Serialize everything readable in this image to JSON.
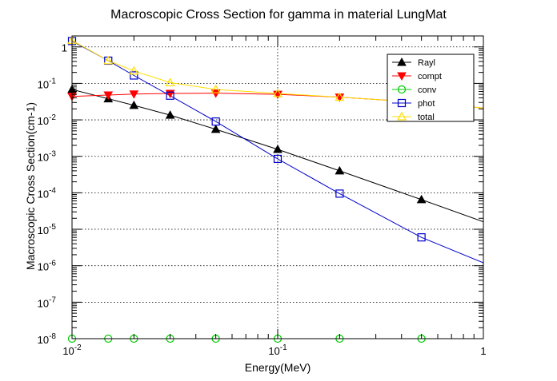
{
  "chart_data": {
    "type": "line",
    "title": "Macroscopic Cross Section for gamma in material LungMat",
    "xlabel": "Energy(MeV)",
    "ylabel": "Macroscopic Cross Section(cm-1)",
    "xscale": "log",
    "yscale": "log",
    "xlim": [
      0.01,
      1
    ],
    "ylim": [
      1e-08,
      2
    ],
    "grid": true,
    "legend_position": "top-right",
    "x_ticks": [
      {
        "value": 0.01,
        "base": "10",
        "exp": "-2"
      },
      {
        "value": 0.1,
        "base": "10",
        "exp": "-1"
      },
      {
        "value": 1,
        "base": "1",
        "exp": ""
      }
    ],
    "y_ticks": [
      {
        "value": 1,
        "base": "1",
        "exp": ""
      },
      {
        "value": 0.1,
        "base": "10",
        "exp": "-1"
      },
      {
        "value": 0.01,
        "base": "10",
        "exp": "-2"
      },
      {
        "value": 0.001,
        "base": "10",
        "exp": "-3"
      },
      {
        "value": 0.0001,
        "base": "10",
        "exp": "-4"
      },
      {
        "value": 1e-05,
        "base": "10",
        "exp": "-5"
      },
      {
        "value": 1e-06,
        "base": "10",
        "exp": "-6"
      },
      {
        "value": 1e-07,
        "base": "10",
        "exp": "-7"
      },
      {
        "value": 1e-08,
        "base": "10",
        "exp": "-8"
      }
    ],
    "series": [
      {
        "name": "Rayl",
        "color": "#000000",
        "marker": "triangle-up",
        "line": [
          [
            0.01,
            0.068
          ],
          [
            0.015,
            0.038
          ],
          [
            0.02,
            0.025
          ],
          [
            0.03,
            0.0135
          ],
          [
            0.05,
            0.0055
          ],
          [
            0.1,
            0.00155
          ],
          [
            0.2,
            0.0004
          ],
          [
            0.5,
            6.5e-05
          ],
          [
            1,
            1.6e-05
          ]
        ],
        "points": [
          [
            0.01,
            0.068
          ],
          [
            0.015,
            0.038
          ],
          [
            0.02,
            0.025
          ],
          [
            0.03,
            0.0135
          ],
          [
            0.05,
            0.0055
          ],
          [
            0.1,
            0.00155
          ],
          [
            0.2,
            0.0004
          ],
          [
            0.5,
            6.5e-05
          ]
        ]
      },
      {
        "name": "compt",
        "color": "#ff0000",
        "marker": "triangle-down",
        "line": [
          [
            0.01,
            0.044
          ],
          [
            0.015,
            0.048
          ],
          [
            0.02,
            0.051
          ],
          [
            0.03,
            0.053
          ],
          [
            0.05,
            0.054
          ],
          [
            0.1,
            0.05
          ],
          [
            0.2,
            0.042
          ],
          [
            0.5,
            0.03
          ],
          [
            1,
            0.021
          ]
        ],
        "points": [
          [
            0.01,
            0.044
          ],
          [
            0.015,
            0.048
          ],
          [
            0.02,
            0.051
          ],
          [
            0.03,
            0.053
          ],
          [
            0.05,
            0.054
          ],
          [
            0.1,
            0.05
          ],
          [
            0.2,
            0.042
          ]
        ]
      },
      {
        "name": "conv",
        "color": "#00cc00",
        "marker": "circle-open",
        "line": [
          [
            0.01,
            1e-08
          ],
          [
            1,
            1e-08
          ]
        ],
        "points": [
          [
            0.01,
            1e-08
          ],
          [
            0.015,
            1e-08
          ],
          [
            0.02,
            1e-08
          ],
          [
            0.03,
            1e-08
          ],
          [
            0.05,
            1e-08
          ],
          [
            0.1,
            1e-08
          ],
          [
            0.2,
            1e-08
          ],
          [
            0.5,
            1e-08
          ]
        ]
      },
      {
        "name": "phot",
        "color": "#0000cc",
        "marker": "square-open",
        "line": [
          [
            0.01,
            1.45
          ],
          [
            0.015,
            0.42
          ],
          [
            0.02,
            0.165
          ],
          [
            0.03,
            0.046
          ],
          [
            0.05,
            0.009
          ],
          [
            0.1,
            0.00085
          ],
          [
            0.2,
            9.5e-05
          ],
          [
            0.5,
            6e-06
          ],
          [
            1,
            1.2e-06
          ]
        ],
        "points": [
          [
            0.01,
            1.45
          ],
          [
            0.015,
            0.42
          ],
          [
            0.02,
            0.165
          ],
          [
            0.03,
            0.046
          ],
          [
            0.05,
            0.009
          ],
          [
            0.1,
            0.00085
          ],
          [
            0.2,
            9.5e-05
          ],
          [
            0.5,
            6e-06
          ]
        ]
      },
      {
        "name": "total",
        "color": "#ffdd00",
        "marker": "triangle-up-open",
        "line": [
          [
            0.01,
            1.5
          ],
          [
            0.015,
            0.42
          ],
          [
            0.02,
            0.22
          ],
          [
            0.03,
            0.105
          ],
          [
            0.05,
            0.068
          ],
          [
            0.1,
            0.053
          ],
          [
            0.2,
            0.042
          ],
          [
            0.5,
            0.03
          ],
          [
            1,
            0.021
          ]
        ],
        "points": [
          [
            0.01,
            1.5
          ],
          [
            0.015,
            0.42
          ],
          [
            0.02,
            0.22
          ],
          [
            0.03,
            0.105
          ],
          [
            0.05,
            0.068
          ],
          [
            0.1,
            0.053
          ],
          [
            0.2,
            0.042
          ]
        ]
      }
    ]
  }
}
